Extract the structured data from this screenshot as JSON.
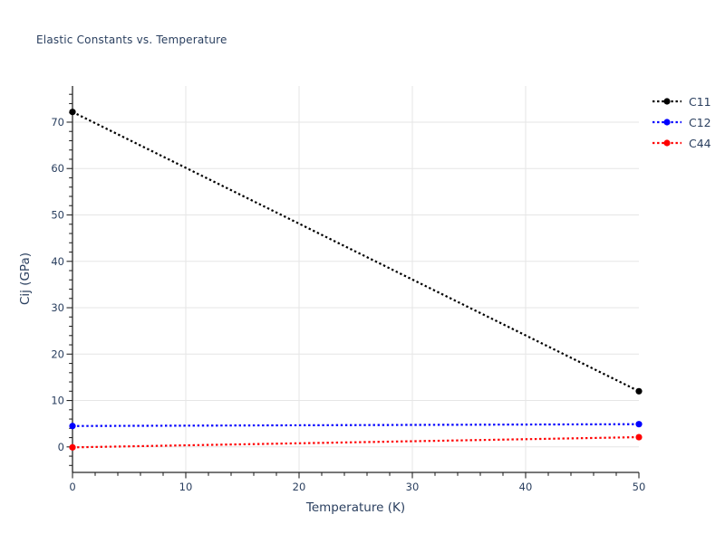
{
  "chart_data": {
    "type": "line",
    "title": "Elastic Constants vs. Temperature",
    "xlabel": "Temperature (K)",
    "ylabel": "Cij (GPa)",
    "xlim": [
      0,
      50
    ],
    "ylim": [
      -5.5,
      77.8
    ],
    "x_major_ticks": [
      0,
      10,
      20,
      30,
      40,
      50
    ],
    "y_major_ticks": [
      0,
      10,
      20,
      30,
      40,
      50,
      60,
      70
    ],
    "minor_tick_step": 2,
    "grid": true,
    "legend_position": "outside-upper-right",
    "series": [
      {
        "name": "C11",
        "color": "#000000",
        "line_style": "dotted",
        "marker": "circle",
        "x": [
          0,
          50
        ],
        "y": [
          72.2,
          12.0
        ]
      },
      {
        "name": "C12",
        "color": "#0000ff",
        "line_style": "dotted",
        "marker": "circle",
        "x": [
          0,
          50
        ],
        "y": [
          4.5,
          4.9
        ]
      },
      {
        "name": "C44",
        "color": "#ff0000",
        "line_style": "dotted",
        "marker": "circle",
        "x": [
          0,
          50
        ],
        "y": [
          -0.1,
          2.1
        ]
      }
    ]
  },
  "style": {
    "text_color": "#2a3f5f",
    "grid_color": "#e6e6e6",
    "axis_color": "#262626",
    "background": "#ffffff"
  }
}
